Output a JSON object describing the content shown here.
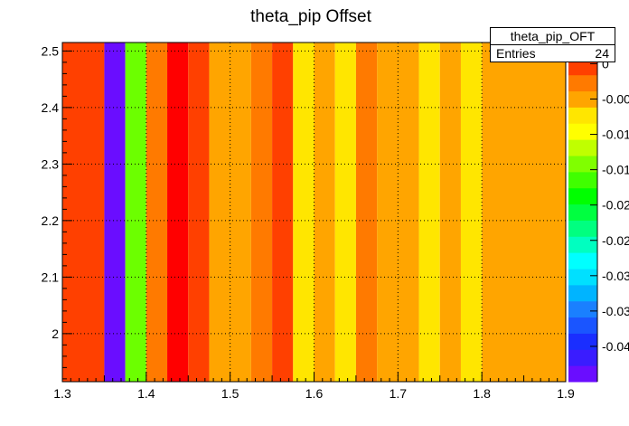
{
  "chart_data": {
    "type": "heatmap",
    "title": "theta_pip Offset",
    "xlabel": "",
    "ylabel": "",
    "xlim": [
      1.3,
      1.9
    ],
    "ylim": [
      1.915,
      2.515
    ],
    "x_ticks": [
      "1.3",
      "1.4",
      "1.5",
      "1.6",
      "1.7",
      "1.8",
      "1.9"
    ],
    "y_ticks": [
      "2",
      "2.1",
      "2.2",
      "2.3",
      "2.4",
      "2.5"
    ],
    "grid": true,
    "colorbar": {
      "min": -0.045,
      "max": 0.003,
      "tick_labels": [
        "0",
        "-0.00",
        "-0.01",
        "-0.01",
        "-0.02",
        "-0.02",
        "-0.03",
        "-0.03",
        "-0.04"
      ],
      "palette": [
        "#6a0dff",
        "#3a1cff",
        "#1a2eff",
        "#1a55ff",
        "#1a80ff",
        "#00b4ff",
        "#00e0ff",
        "#00ffff",
        "#00ffc0",
        "#00ff80",
        "#00ff40",
        "#00ff00",
        "#40ff00",
        "#80ff00",
        "#c0ff00",
        "#ffff00",
        "#ffe600",
        "#ffa500",
        "#ff7a00",
        "#ff4000",
        "#ff0000"
      ]
    },
    "columns": [
      {
        "x0": 1.3,
        "x1": 1.35,
        "value": -0.002,
        "color": "#ff4000"
      },
      {
        "x0": 1.35,
        "x1": 1.375,
        "value": -0.044,
        "color": "#6a0dff"
      },
      {
        "x0": 1.375,
        "x1": 1.4,
        "value": -0.015,
        "color": "#6cff00"
      },
      {
        "x0": 1.4,
        "x1": 1.425,
        "value": -0.003,
        "color": "#ff7a00"
      },
      {
        "x0": 1.425,
        "x1": 1.45,
        "value": 0.002,
        "color": "#ff0000"
      },
      {
        "x0": 1.45,
        "x1": 1.475,
        "value": -0.002,
        "color": "#ff4000"
      },
      {
        "x0": 1.475,
        "x1": 1.525,
        "value": -0.005,
        "color": "#ffa500"
      },
      {
        "x0": 1.525,
        "x1": 1.55,
        "value": -0.003,
        "color": "#ff7a00"
      },
      {
        "x0": 1.55,
        "x1": 1.575,
        "value": -0.002,
        "color": "#ff4000"
      },
      {
        "x0": 1.575,
        "x1": 1.6,
        "value": -0.007,
        "color": "#ffe600"
      },
      {
        "x0": 1.6,
        "x1": 1.625,
        "value": -0.005,
        "color": "#ffa500"
      },
      {
        "x0": 1.625,
        "x1": 1.65,
        "value": -0.007,
        "color": "#ffe600"
      },
      {
        "x0": 1.65,
        "x1": 1.675,
        "value": -0.003,
        "color": "#ff7a00"
      },
      {
        "x0": 1.675,
        "x1": 1.725,
        "value": -0.005,
        "color": "#ffa500"
      },
      {
        "x0": 1.725,
        "x1": 1.75,
        "value": -0.007,
        "color": "#ffe600"
      },
      {
        "x0": 1.75,
        "x1": 1.775,
        "value": -0.005,
        "color": "#ffa500"
      },
      {
        "x0": 1.775,
        "x1": 1.8,
        "value": -0.007,
        "color": "#ffe600"
      },
      {
        "x0": 1.8,
        "x1": 1.9,
        "value": -0.005,
        "color": "#ffa500"
      }
    ]
  },
  "stats_box": {
    "name": "theta_pip_OFT",
    "entries_label": "Entries",
    "entries_value": "24"
  }
}
